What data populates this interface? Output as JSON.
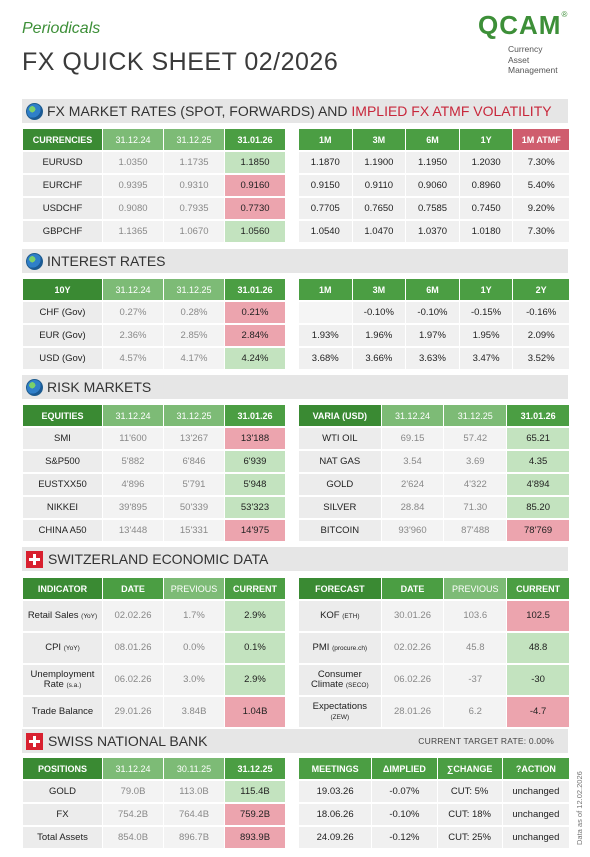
{
  "header": {
    "periodicals": "Periodicals",
    "title": "FX QUICK SHEET 02/2026",
    "logo_text": "QCAM",
    "logo_reg": "®",
    "logo_sub": [
      "Currency",
      "Asset",
      "Management"
    ]
  },
  "fx": {
    "band_black": "FX MARKET RATES (SPOT, FORWARDS) AND ",
    "band_red": "IMPLIED FX ATMF VOLATILITY",
    "left_headers": [
      "CURRENCIES",
      "31.12.24",
      "31.12.25",
      "31.01.26"
    ],
    "right_headers": [
      "1M",
      "3M",
      "6M",
      "1Y",
      "1M ATMF"
    ],
    "rows": [
      {
        "name": "EURUSD",
        "d1": "1.0350",
        "d2": "1.1735",
        "d3": "1.1850",
        "f1m": "1.1870",
        "f3m": "1.1900",
        "f6m": "1.1950",
        "f1y": "1.2030",
        "vol": "7.30%"
      },
      {
        "name": "EURCHF",
        "d1": "0.9395",
        "d2": "0.9310",
        "d3": "0.9160",
        "f1m": "0.9150",
        "f3m": "0.9110",
        "f6m": "0.9060",
        "f1y": "0.8960",
        "vol": "5.40%"
      },
      {
        "name": "USDCHF",
        "d1": "0.9080",
        "d2": "0.7935",
        "d3": "0.7730",
        "f1m": "0.7705",
        "f3m": "0.7650",
        "f6m": "0.7585",
        "f1y": "0.7450",
        "vol": "9.20%"
      },
      {
        "name": "GBPCHF",
        "d1": "1.1365",
        "d2": "1.0670",
        "d3": "1.0560",
        "f1m": "1.0540",
        "f3m": "1.0470",
        "f6m": "1.0370",
        "f1y": "1.0180",
        "vol": "7.30%"
      }
    ]
  },
  "rates": {
    "band": "INTEREST RATES",
    "left_headers": [
      "10Y",
      "31.12.24",
      "31.12.25",
      "31.01.26"
    ],
    "right_headers": [
      "1M",
      "3M",
      "6M",
      "1Y",
      "2Y"
    ],
    "rows": [
      {
        "name": "CHF (Gov)",
        "d1": "0.27%",
        "d2": "0.28%",
        "d3": "0.21%",
        "r1m": "",
        "r3m": "-0.10%",
        "r6m": "-0.10%",
        "r1y": "-0.15%",
        "r2y": "-0.16%"
      },
      {
        "name": "EUR (Gov)",
        "d1": "2.36%",
        "d2": "2.85%",
        "d3": "2.84%",
        "r1m": "1.93%",
        "r3m": "1.96%",
        "r6m": "1.97%",
        "r1y": "1.95%",
        "r2y": "2.09%"
      },
      {
        "name": "USD (Gov)",
        "d1": "4.57%",
        "d2": "4.17%",
        "d3": "4.24%",
        "r1m": "3.68%",
        "r3m": "3.66%",
        "r6m": "3.63%",
        "r1y": "3.47%",
        "r2y": "3.52%"
      }
    ]
  },
  "risk": {
    "band": "RISK MARKETS",
    "left_headers": [
      "EQUITIES",
      "31.12.24",
      "31.12.25",
      "31.01.26"
    ],
    "right_headers": [
      "VARIA (USD)",
      "31.12.24",
      "31.12.25",
      "31.01.26"
    ],
    "equities": [
      {
        "name": "SMI",
        "d1": "11'600",
        "d2": "13'267",
        "d3": "13'188"
      },
      {
        "name": "S&P500",
        "d1": "5'882",
        "d2": "6'846",
        "d3": "6'939"
      },
      {
        "name": "EUSTXX50",
        "d1": "4'896",
        "d2": "5'791",
        "d3": "5'948"
      },
      {
        "name": "NIKKEI",
        "d1": "39'895",
        "d2": "50'339",
        "d3": "53'323"
      },
      {
        "name": "CHINA A50",
        "d1": "13'448",
        "d2": "15'331",
        "d3": "14'975"
      }
    ],
    "varia": [
      {
        "name": "WTI OIL",
        "d1": "69.15",
        "d2": "57.42",
        "d3": "65.21"
      },
      {
        "name": "NAT GAS",
        "d1": "3.54",
        "d2": "3.69",
        "d3": "4.35"
      },
      {
        "name": "GOLD",
        "d1": "2'624",
        "d2": "4'322",
        "d3": "4'894"
      },
      {
        "name": "SILVER",
        "d1": "28.84",
        "d2": "71.30",
        "d3": "85.20"
      },
      {
        "name": "BITCOIN",
        "d1": "93'960",
        "d2": "87'488",
        "d3": "78'769"
      }
    ]
  },
  "swiss": {
    "band": "SWITZERLAND ECONOMIC DATA",
    "left_headers": [
      "INDICATOR",
      "DATE",
      "PREVIOUS",
      "CURRENT"
    ],
    "right_headers": [
      "FORECAST",
      "DATE",
      "PREVIOUS",
      "CURRENT"
    ],
    "indicators": [
      {
        "name": "Retail Sales",
        "suffix": "(YoY)",
        "date": "02.02.26",
        "prev": "1.7%",
        "cur": "2.9%"
      },
      {
        "name": "CPI",
        "suffix": "(YoY)",
        "date": "08.01.26",
        "prev": "0.0%",
        "cur": "0.1%"
      },
      {
        "name": "Unemployment Rate",
        "suffix": "(s.a.)",
        "date": "06.02.26",
        "prev": "3.0%",
        "cur": "2.9%"
      },
      {
        "name": "Trade Balance",
        "suffix": "",
        "date": "29.01.26",
        "prev": "3.84B",
        "cur": "1.04B"
      }
    ],
    "forecasts": [
      {
        "name": "KOF",
        "suffix": "(ETH)",
        "date": "30.01.26",
        "prev": "103.6",
        "cur": "102.5"
      },
      {
        "name": "PMI",
        "suffix": "(procure.ch)",
        "date": "02.02.26",
        "prev": "45.8",
        "cur": "48.8"
      },
      {
        "name": "Consumer Climate",
        "suffix": "(SECO)",
        "date": "06.02.26",
        "prev": "-37",
        "cur": "-30"
      },
      {
        "name": "Expectations",
        "suffix": "(ZEW)",
        "date": "28.01.26",
        "prev": "6.2",
        "cur": "-4.7"
      }
    ]
  },
  "snb": {
    "band": "SWISS NATIONAL BANK",
    "target_rate": "CURRENT TARGET RATE: 0.00%",
    "left_headers": [
      "POSITIONS",
      "31.12.24",
      "30.11.25",
      "31.12.25"
    ],
    "right_headers": [
      "MEETINGS",
      "ΔIMPLIED",
      "∑CHANGE",
      "?ACTION"
    ],
    "positions": [
      {
        "name": "GOLD",
        "d1": "79.0B",
        "d2": "113.0B",
        "d3": "115.4B"
      },
      {
        "name": "FX",
        "d1": "754.2B",
        "d2": "764.4B",
        "d3": "759.2B"
      },
      {
        "name": "Total Assets",
        "d1": "854.0B",
        "d2": "896.7B",
        "d3": "893.9B"
      }
    ],
    "meetings": [
      {
        "date": "19.03.26",
        "implied": "-0.07%",
        "change": "CUT: 5%",
        "action": "unchanged"
      },
      {
        "date": "18.06.26",
        "implied": "-0.10%",
        "change": "CUT: 18%",
        "action": "unchanged"
      },
      {
        "date": "24.09.26",
        "implied": "-0.12%",
        "change": "CUT: 25%",
        "action": "unchanged"
      }
    ]
  },
  "footer_note": "Data as of 12.02.2026"
}
